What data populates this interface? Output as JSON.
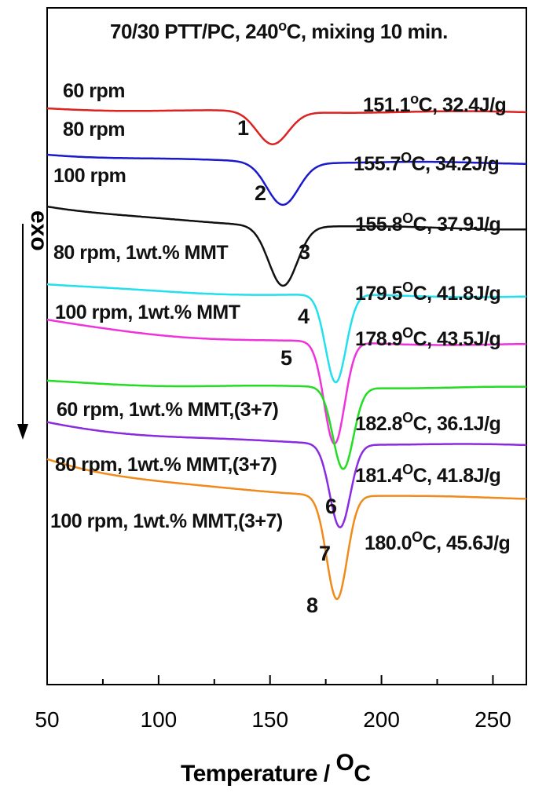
{
  "chart_data": {
    "type": "line",
    "title": "70/30 PTT/PC, 240°C, mixing 10 min.",
    "xlabel": "Temperature / ",
    "xlabel_unit": "C",
    "xlabel_unit_sup": "O",
    "ylabel": "exo",
    "xlim": [
      50,
      265
    ],
    "xticks": [
      50,
      100,
      150,
      200,
      250
    ],
    "grid": false,
    "series": [
      {
        "id": "1",
        "name": "60 rpm",
        "color": "#dd2222",
        "baseline": 0.4,
        "depth": 2.1,
        "peak_x": 151.1,
        "width": 10,
        "tail": 0.25,
        "annotation": "151.1°C, 32.4J/g"
      },
      {
        "id": "2",
        "name": "80 rpm",
        "color": "#1a1acc",
        "baseline": 3.3,
        "depth": 2.7,
        "peak_x": 155.7,
        "width": 10,
        "tail": 0.6,
        "annotation": "155.7OC, 34.2J/g"
      },
      {
        "id": "3",
        "name": "100 rpm",
        "color": "#111111",
        "baseline": 6.6,
        "depth": 3.8,
        "peak_x": 155.8,
        "width": 9,
        "tail": 1.5,
        "annotation": "155.8OC, 37.9J/g"
      },
      {
        "id": "4",
        "name": "80 rpm, 1wt.% MMT",
        "color": "#22e0ee",
        "baseline": 11.6,
        "depth": 5.6,
        "peak_x": 179.5,
        "width": 6.5,
        "tail": 0.8,
        "annotation": "179.5OC, 41.8J/g"
      },
      {
        "id": "5",
        "name": "100 rpm, 1wt.% MMT",
        "color": "#ee33dd",
        "baseline": 13.9,
        "depth": 6.5,
        "peak_x": 178.9,
        "width": 6.5,
        "tail": 1.6,
        "annotation": "178.9OC, 43.5J/g"
      },
      {
        "id": "6",
        "name": "60 rpm, 1wt.% MMT,(3+7)",
        "color": "#22dd22",
        "baseline": 17.8,
        "depth": 5.2,
        "peak_x": 182.8,
        "width": 6.5,
        "tail": 0.4,
        "annotation": "182.8OC, 36.1J/g"
      },
      {
        "id": "7",
        "name": "80 rpm, 1wt.% MMT,(3+7)",
        "color": "#8a2be2",
        "baseline": 20.4,
        "depth": 5.3,
        "peak_x": 181.4,
        "width": 6.5,
        "tail": 1.5,
        "annotation": "181.4OC, 41.8J/g"
      },
      {
        "id": "8",
        "name": "100 rpm, 1wt.% MMT,(3+7)",
        "color": "#f08a1a",
        "baseline": 22.7,
        "depth": 6.6,
        "peak_x": 180.0,
        "width": 6.5,
        "tail": 2.6,
        "annotation": "180.0OC, 45.6J/g"
      }
    ]
  }
}
